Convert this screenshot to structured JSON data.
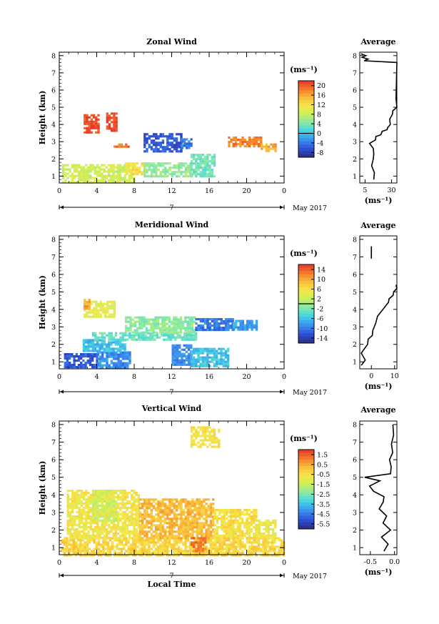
{
  "chart_data": [
    {
      "type": "heatmap",
      "title": "Zonal Wind",
      "xlabel": "",
      "ylabel": "Height (km)",
      "xticks": [
        "0",
        "4",
        "8",
        "12",
        "16",
        "20",
        "0"
      ],
      "xlim": [
        0,
        24
      ],
      "yticks": [
        "1",
        "2",
        "3",
        "4",
        "5",
        "6",
        "7",
        "8"
      ],
      "ylim": [
        0.6,
        8.2
      ],
      "day_label": "7",
      "month_label": "May 2017",
      "colorbar": {
        "unit": "(ms⁻¹)",
        "ticks": [
          "20",
          "16",
          "12",
          "8",
          "4",
          "0",
          "-4",
          "-8"
        ],
        "range": [
          -10,
          22
        ],
        "marker": 0
      },
      "patches": [
        {
          "x0": 0.3,
          "x1": 8.0,
          "y0": 0.7,
          "y1": 1.7,
          "value": 8.5
        },
        {
          "x0": 7.0,
          "x1": 9.0,
          "y0": 1.1,
          "y1": 1.8,
          "value": 12.0
        },
        {
          "x0": 9.0,
          "x1": 14.0,
          "y0": 1.0,
          "y1": 1.8,
          "value": 5.0
        },
        {
          "x0": 14.0,
          "x1": 16.5,
          "y0": 1.0,
          "y1": 2.3,
          "value": 3.5
        },
        {
          "x0": 9.0,
          "x1": 13.0,
          "y0": 2.5,
          "y1": 3.5,
          "value": -6.0
        },
        {
          "x0": 13.0,
          "x1": 14.0,
          "y0": 2.7,
          "y1": 3.2,
          "value": -4.0
        },
        {
          "x0": 2.6,
          "x1": 4.2,
          "y0": 3.6,
          "y1": 4.6,
          "value": 21.0
        },
        {
          "x0": 5.0,
          "x1": 6.2,
          "y0": 3.6,
          "y1": 4.7,
          "value": 21.0
        },
        {
          "x0": 18.0,
          "x1": 21.5,
          "y0": 2.8,
          "y1": 3.3,
          "value": 18.0
        },
        {
          "x0": 21.5,
          "x1": 23.2,
          "y0": 2.5,
          "y1": 2.9,
          "value": 16.0
        },
        {
          "x0": 5.8,
          "x1": 7.3,
          "y0": 2.7,
          "y1": 2.9,
          "value": 19.0
        }
      ],
      "profile": {
        "title": "Average",
        "xlabel": "(ms⁻¹)",
        "xticks": [
          "5",
          "30"
        ],
        "xlim": [
          0,
          35
        ],
        "x": [
          14,
          13,
          12,
          12,
          14,
          12,
          10,
          14,
          16,
          19,
          22,
          25,
          27,
          28,
          29,
          30,
          32,
          35,
          35,
          35,
          5,
          7,
          3,
          5,
          2
        ],
        "y": [
          0.8,
          1.2,
          1.6,
          2.0,
          2.3,
          2.6,
          2.9,
          3.1,
          3.3,
          3.4,
          3.6,
          3.7,
          3.8,
          4.0,
          4.3,
          4.6,
          4.8,
          5.0,
          5.5,
          7.6,
          7.7,
          7.8,
          7.9,
          8.0,
          8.1
        ]
      }
    },
    {
      "type": "heatmap",
      "title": "Meridional Wind",
      "xlabel": "",
      "ylabel": "Height (km)",
      "xticks": [
        "0",
        "4",
        "8",
        "12",
        "16",
        "20",
        "0"
      ],
      "xlim": [
        0,
        24
      ],
      "yticks": [
        "1",
        "2",
        "3",
        "4",
        "5",
        "6",
        "7",
        "8"
      ],
      "ylim": [
        0.6,
        8.2
      ],
      "day_label": "7",
      "month_label": "May 2017",
      "colorbar": {
        "unit": "(ms⁻¹)",
        "ticks": [
          "14",
          "10",
          "6",
          "2",
          "-2",
          "-6",
          "-10",
          "-14"
        ],
        "range": [
          -16,
          16
        ],
        "marker": 0
      },
      "patches": [
        {
          "x0": 0.5,
          "x1": 4.0,
          "y0": 0.7,
          "y1": 1.5,
          "value": -12.0
        },
        {
          "x0": 4.0,
          "x1": 7.5,
          "y0": 0.7,
          "y1": 1.6,
          "value": -9.0
        },
        {
          "x0": 2.5,
          "x1": 7.0,
          "y0": 1.6,
          "y1": 2.3,
          "value": -6.0
        },
        {
          "x0": 3.5,
          "x1": 14.5,
          "y0": 2.3,
          "y1": 2.7,
          "value": -3.0
        },
        {
          "x0": 7.0,
          "x1": 14.5,
          "y0": 2.7,
          "y1": 3.6,
          "value": -1.0
        },
        {
          "x0": 14.5,
          "x1": 18.5,
          "y0": 2.8,
          "y1": 3.5,
          "value": -10.0
        },
        {
          "x0": 18.5,
          "x1": 21.0,
          "y0": 2.9,
          "y1": 3.4,
          "value": -8.0
        },
        {
          "x0": 12.0,
          "x1": 14.0,
          "y0": 0.8,
          "y1": 2.0,
          "value": -9.0
        },
        {
          "x0": 14.0,
          "x1": 18.0,
          "y0": 0.7,
          "y1": 1.8,
          "value": -6.0
        },
        {
          "x0": 2.6,
          "x1": 6.0,
          "y0": 3.6,
          "y1": 4.5,
          "value": 4.0
        },
        {
          "x0": 2.6,
          "x1": 3.2,
          "y0": 4.1,
          "y1": 4.6,
          "value": 10.0
        }
      ],
      "profile": {
        "title": "Average",
        "xlabel": "(ms⁻¹)",
        "xticks": [
          "0",
          "10"
        ],
        "xlim": [
          -5,
          11
        ],
        "x": [
          -4,
          -3,
          -4,
          -2,
          -1,
          0,
          1,
          1.5,
          3,
          4,
          6,
          7,
          8,
          9,
          10,
          11,
          11
        ],
        "y": [
          0.8,
          1.1,
          1.5,
          2.0,
          2.3,
          2.5,
          2.8,
          3.2,
          3.6,
          3.9,
          4.1,
          4.4,
          4.6,
          4.8,
          5.0,
          5.2,
          5.4
        ]
      },
      "profile_extra": {
        "x": [
          0,
          0
        ],
        "y": [
          6.9,
          7.6
        ]
      }
    },
    {
      "type": "heatmap",
      "title": "Vertical Wind",
      "xlabel": "Local Time",
      "ylabel": "Height (km)",
      "xticks": [
        "0",
        "4",
        "8",
        "12",
        "16",
        "20",
        "0"
      ],
      "xlim": [
        0,
        24
      ],
      "yticks": [
        "1",
        "2",
        "3",
        "4",
        "5",
        "6",
        "7",
        "8"
      ],
      "ylim": [
        0.6,
        8.2
      ],
      "day_label": "7",
      "month_label": "May 2017",
      "colorbar": {
        "unit": "(ms⁻¹)",
        "ticks": [
          "1.5",
          "0.5",
          "-0.5",
          "-1.5",
          "-2.5",
          "-3.5",
          "-4.5",
          "-5.5"
        ],
        "range": [
          -6.0,
          2.0
        ],
        "marker": null
      },
      "patches": [
        {
          "x0": 0.2,
          "x1": 24.0,
          "y0": 0.6,
          "y1": 1.6,
          "value": -0.3
        },
        {
          "x0": 0.8,
          "x1": 8.5,
          "y0": 1.6,
          "y1": 4.3,
          "value": -0.7
        },
        {
          "x0": 8.5,
          "x1": 16.5,
          "y0": 1.6,
          "y1": 3.8,
          "value": 0.2
        },
        {
          "x0": 16.5,
          "x1": 21.0,
          "y0": 1.6,
          "y1": 3.2,
          "value": -0.5
        },
        {
          "x0": 21.0,
          "x1": 23.0,
          "y0": 1.6,
          "y1": 2.6,
          "value": -0.8
        },
        {
          "x0": 14.0,
          "x1": 15.5,
          "y0": 0.8,
          "y1": 1.6,
          "value": 1.2
        },
        {
          "x0": 3.5,
          "x1": 6.0,
          "y0": 2.5,
          "y1": 4.3,
          "value": -1.4
        },
        {
          "x0": 14.0,
          "x1": 17.0,
          "y0": 6.8,
          "y1": 7.9,
          "value": -0.6
        }
      ],
      "profile": {
        "title": "Average",
        "xlabel": "(ms⁻¹)",
        "xticks": [
          "-0.5",
          "0.0"
        ],
        "xlim": [
          -0.72,
          0.05
        ],
        "x": [
          -0.2,
          -0.15,
          -0.25,
          -0.1,
          -0.22,
          -0.18,
          -0.3,
          -0.25,
          -0.2,
          -0.45,
          -0.5,
          -0.32,
          -0.6,
          -0.1,
          -0.05,
          -0.12,
          -0.02,
          -0.08,
          0.0,
          -0.05
        ],
        "y": [
          0.8,
          1.2,
          1.6,
          2.0,
          2.4,
          2.8,
          3.2,
          3.6,
          3.9,
          4.2,
          4.5,
          4.8,
          5.0,
          5.2,
          5.6,
          6.0,
          6.4,
          6.9,
          7.4,
          8.0
        ]
      }
    }
  ]
}
